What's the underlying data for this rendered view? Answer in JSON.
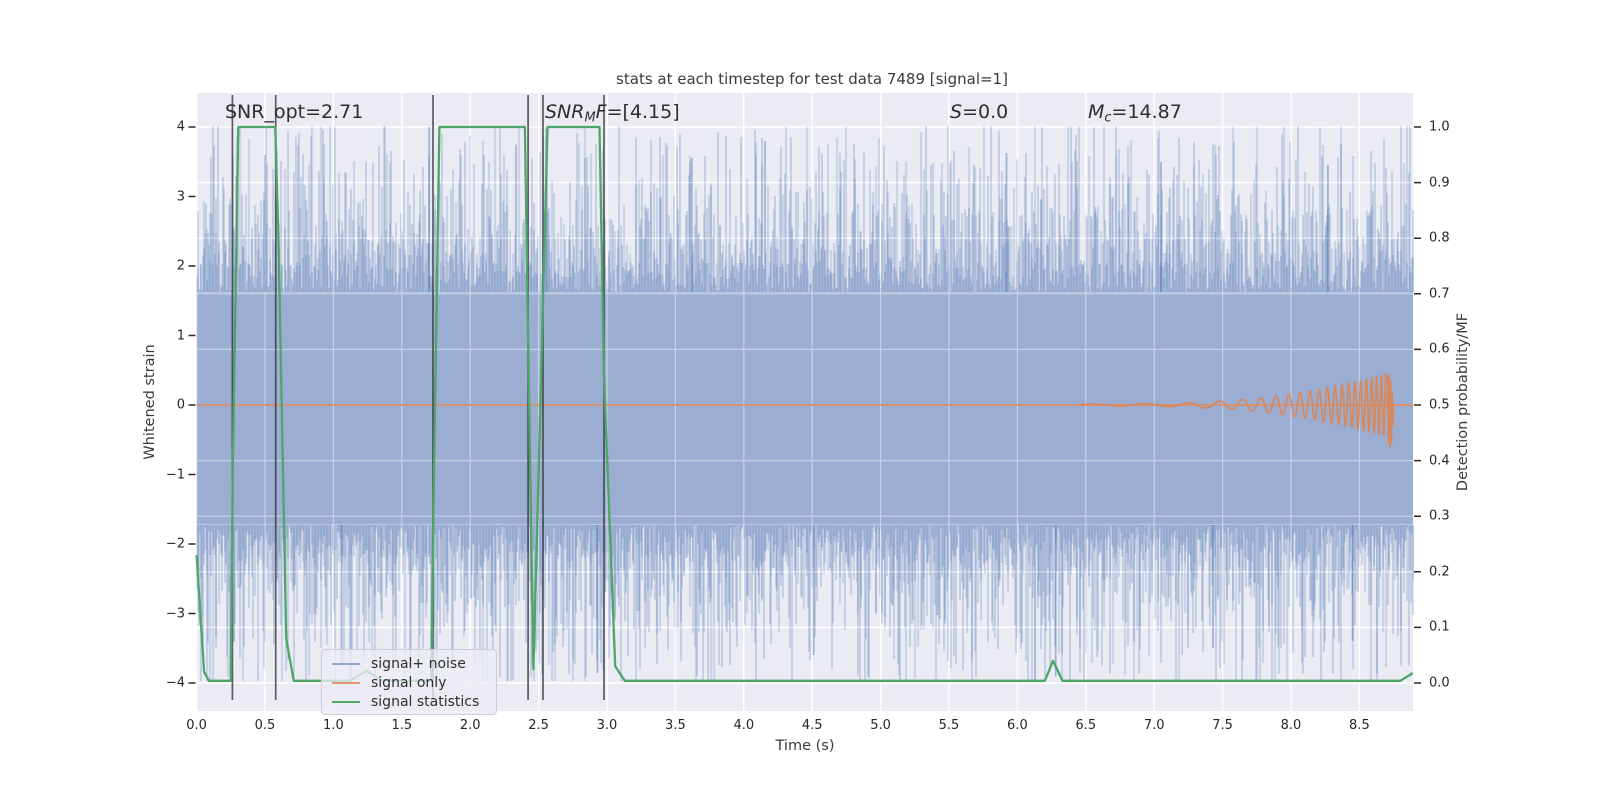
{
  "figure": {
    "background": "#ffffff",
    "axes_background": "#eaebf3",
    "grid_color": "#ffffff",
    "tick_color": "#262626",
    "text_color": "#3a3a3a"
  },
  "chart_data": {
    "type": "line",
    "title": "stats at each timestep for test data 7489 [signal=1]",
    "xlabel": "Time (s)",
    "ylabel_left": "Whitened strain",
    "ylabel_right": "Detection probability/MF",
    "xlim": [
      0.0,
      8.89
    ],
    "grid": true,
    "legend_position": "lower left",
    "axes": {
      "x_ticks": [
        0.0,
        0.5,
        1.0,
        1.5,
        2.0,
        2.5,
        3.0,
        3.5,
        4.0,
        4.5,
        5.0,
        5.5,
        6.0,
        6.5,
        7.0,
        7.5,
        8.0,
        8.5
      ],
      "x_tick_labels": [
        "0.0",
        "0.5",
        "1.0",
        "1.5",
        "2.0",
        "2.5",
        "3.0",
        "3.5",
        "4.0",
        "4.5",
        "5.0",
        "5.5",
        "6.0",
        "6.5",
        "7.0",
        "7.5",
        "8.0",
        "8.5"
      ],
      "y_ticks_left": [
        4,
        3,
        2,
        1,
        0,
        -1,
        -2,
        -3,
        -4
      ],
      "y_tick_labels_left": [
        "4",
        "3",
        "2",
        "1",
        "0",
        "−1",
        "−2",
        "−3",
        "−4"
      ],
      "y_ticks_right": [
        1.0,
        0.9,
        0.8,
        0.7,
        0.6,
        0.5,
        0.4,
        0.3,
        0.2,
        0.1,
        0.0
      ],
      "y_tick_labels_right": [
        "1.0",
        "0.9",
        "0.8",
        "0.7",
        "0.6",
        "0.5",
        "0.4",
        "0.3",
        "0.2",
        "0.1",
        "0.0"
      ]
    },
    "annotations": [
      {
        "id": "snr-opt",
        "parts": [
          {
            "t": "SNR_opt=2.71",
            "i": false
          }
        ]
      },
      {
        "id": "snr-mf",
        "parts": [
          {
            "t": "SNR",
            "i": true
          },
          {
            "t": "M",
            "i": true,
            "sub": true
          },
          {
            "t": "F",
            "i": true
          },
          {
            "t": "=[4.15]",
            "i": false
          }
        ]
      },
      {
        "id": "s-value",
        "parts": [
          {
            "t": "S",
            "i": true
          },
          {
            "t": "=0.0",
            "i": false
          }
        ]
      },
      {
        "id": "m-chirp",
        "parts": [
          {
            "t": "M",
            "i": true
          },
          {
            "t": "c",
            "i": true,
            "sub": true
          },
          {
            "t": "=14.87",
            "i": false
          }
        ]
      }
    ],
    "event_vlines": {
      "color": "#32323a",
      "times": [
        0.262,
        0.578,
        1.728,
        2.423,
        2.532,
        2.978
      ]
    },
    "series": [
      {
        "name": "signal+ noise",
        "color": "#4C72B0",
        "legend_color": "#91a7d0",
        "style": "noise_band",
        "core_band": [
          -1.72,
          1.62
        ],
        "spike_extent": [
          -3.97,
          4.02
        ],
        "seed": 7489,
        "tall_spikes": [
          [
            1.7,
            4.0
          ],
          [
            2.56,
            3.97
          ],
          [
            0.5,
            3.6
          ],
          [
            3.62,
            3.55
          ],
          [
            5.92,
            3.62
          ],
          [
            7.05,
            3.5
          ],
          [
            8.27,
            3.45
          ],
          [
            1.06,
            -3.75
          ],
          [
            2.93,
            -3.85
          ],
          [
            4.51,
            -3.6
          ],
          [
            6.28,
            -3.9
          ],
          [
            7.43,
            -3.5
          ],
          [
            8.45,
            -3.4
          ]
        ]
      },
      {
        "name": "signal only",
        "color": "#DD8452",
        "legend_color": "#e0966f",
        "style": "chirp",
        "flat_value": 0.0,
        "chirp": {
          "t_start": 6.45,
          "t_merger": 8.7,
          "amp_start": 0.012,
          "amp_peak": 0.45,
          "amp_power": 3,
          "freq_start": 2.5,
          "freq_end": 30.5,
          "freq_power": 3,
          "merger_zigzag": [
            [
              8.705,
              0.4
            ],
            [
              8.712,
              -0.55
            ],
            [
              8.718,
              0.44
            ],
            [
              8.724,
              -0.62
            ],
            [
              8.729,
              0.35
            ],
            [
              8.734,
              -0.55
            ],
            [
              8.739,
              0.18
            ],
            [
              8.744,
              -0.3
            ],
            [
              8.75,
              0.0
            ]
          ]
        }
      },
      {
        "name": "signal statistics",
        "color": "#4da567",
        "legend_color": "#55a868",
        "style": "line",
        "axis": "right",
        "points": [
          [
            0.0,
            0.23
          ],
          [
            0.055,
            0.02
          ],
          [
            0.09,
            0.004
          ],
          [
            0.25,
            0.004
          ],
          [
            0.265,
            0.4
          ],
          [
            0.305,
            1.0
          ],
          [
            0.575,
            1.0
          ],
          [
            0.6,
            0.78
          ],
          [
            0.655,
            0.08
          ],
          [
            0.71,
            0.004
          ],
          [
            1.12,
            0.004
          ],
          [
            1.24,
            0.022
          ],
          [
            1.36,
            0.004
          ],
          [
            1.715,
            0.004
          ],
          [
            1.732,
            0.32
          ],
          [
            1.775,
            1.0
          ],
          [
            2.4,
            1.0
          ],
          [
            2.423,
            0.62
          ],
          [
            2.462,
            0.025
          ],
          [
            2.49,
            0.28
          ],
          [
            2.565,
            1.0
          ],
          [
            2.945,
            1.0
          ],
          [
            2.978,
            0.55
          ],
          [
            3.06,
            0.03
          ],
          [
            3.13,
            0.004
          ],
          [
            6.2,
            0.004
          ],
          [
            6.26,
            0.04
          ],
          [
            6.33,
            0.004
          ],
          [
            8.8,
            0.004
          ],
          [
            8.89,
            0.018
          ]
        ]
      }
    ]
  }
}
